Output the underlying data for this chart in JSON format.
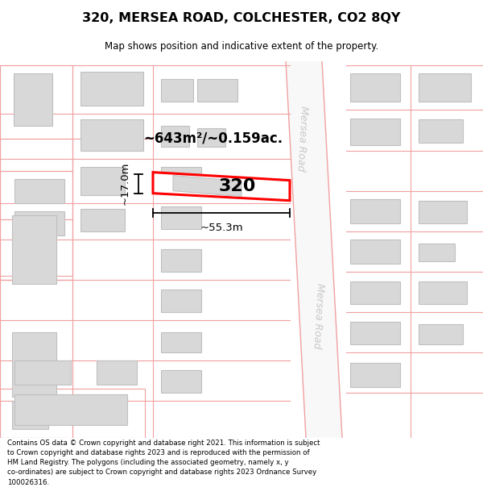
{
  "title": "320, MERSEA ROAD, COLCHESTER, CO2 8QY",
  "subtitle": "Map shows position and indicative extent of the property.",
  "footer_text": "Contains OS data © Crown copyright and database right 2021. This information is subject\nto Crown copyright and database rights 2023 and is reproduced with the permission of\nHM Land Registry. The polygons (including the associated geometry, namely x, y\nco-ordinates) are subject to Crown copyright and database rights 2023 Ordnance Survey\n100026316.",
  "bg_color": "#ffffff",
  "map_bg": "#ffffff",
  "road_line_color": "#f0a0a0",
  "building_fill": "#d8d8d8",
  "building_edge": "#c0c0c0",
  "highlight_color": "#ff0000",
  "road_text_color": "#c8c8c8",
  "label_320": "320",
  "area_label": "~643m²/~0.159ac.",
  "width_label": "~55.3m",
  "height_label": "~17.0m"
}
